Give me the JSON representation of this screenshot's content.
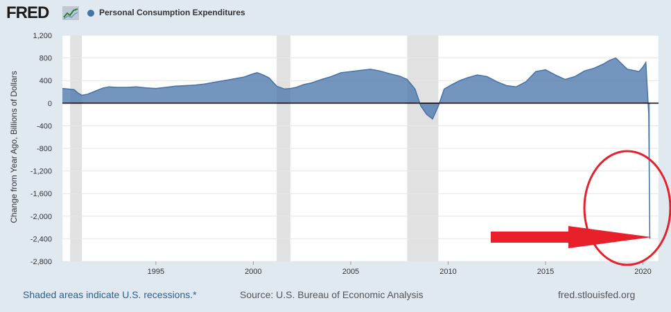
{
  "header": {
    "logo_text": "FRED",
    "logo_icon": "chart-line-icon",
    "legend_label": "Personal Consumption Expenditures"
  },
  "colors": {
    "series": "#4572a7",
    "recession": "#e1e1e1",
    "annotation": "#e8202a",
    "background": "#e1e9f0"
  },
  "footer": {
    "recessions_note": "Shaded areas indicate U.S. recessions.*",
    "source": "Source: U.S. Bureau of Economic Analysis",
    "site": "fred.stlouisfed.org"
  },
  "chart_data": {
    "type": "area",
    "title": "",
    "xlabel": "",
    "ylabel": "Change from Year Ago, Billions of Dollars",
    "ylim": [
      -2800,
      1200
    ],
    "xlim": [
      1990.2,
      2020.8
    ],
    "yticks": [
      1200,
      800,
      400,
      0,
      -400,
      -800,
      -1200,
      -1600,
      -2000,
      -2400,
      -2800
    ],
    "ytick_labels": [
      "1,200",
      "800",
      "400",
      "0",
      "-400",
      "-800",
      "-1,200",
      "-1,600",
      "-2,000",
      "-2,400",
      "-2,800"
    ],
    "xticks": [
      1995,
      2000,
      2005,
      2010,
      2015,
      2020
    ],
    "xtick_labels": [
      "1995",
      "2000",
      "2005",
      "2010",
      "2015",
      "2020"
    ],
    "grid": "horizontal",
    "legend": "top-left",
    "recessions": [
      [
        1990.6,
        1991.2
      ],
      [
        2001.2,
        2001.9
      ],
      [
        2007.9,
        2009.5
      ]
    ],
    "series": [
      {
        "name": "Personal Consumption Expenditures",
        "x": [
          1990.2,
          1990.5,
          1990.8,
          1991.0,
          1991.2,
          1991.5,
          1991.8,
          1992.0,
          1992.3,
          1992.6,
          1993.0,
          1993.5,
          1994.0,
          1994.5,
          1995.0,
          1995.5,
          1996.0,
          1996.5,
          1997.0,
          1997.5,
          1998.0,
          1998.5,
          1999.0,
          1999.5,
          2000.0,
          2000.2,
          2000.5,
          2000.8,
          2001.2,
          2001.6,
          2001.9,
          2002.2,
          2002.6,
          2003.0,
          2003.5,
          2004.0,
          2004.5,
          2005.0,
          2005.5,
          2006.0,
          2006.5,
          2007.0,
          2007.5,
          2007.9,
          2008.3,
          2008.6,
          2008.9,
          2009.2,
          2009.5,
          2009.8,
          2010.2,
          2010.6,
          2011.0,
          2011.5,
          2012.0,
          2012.5,
          2013.0,
          2013.5,
          2014.0,
          2014.5,
          2015.0,
          2015.5,
          2016.0,
          2016.5,
          2017.0,
          2017.5,
          2018.0,
          2018.3,
          2018.6,
          2018.9,
          2019.2,
          2019.5,
          2019.8,
          2020.0,
          2020.15,
          2020.3,
          2020.35
        ],
        "values": [
          260,
          250,
          240,
          180,
          140,
          160,
          200,
          230,
          270,
          290,
          280,
          280,
          290,
          270,
          260,
          280,
          300,
          310,
          320,
          340,
          370,
          400,
          430,
          460,
          520,
          540,
          500,
          450,
          300,
          250,
          260,
          280,
          330,
          360,
          420,
          470,
          540,
          560,
          580,
          600,
          570,
          520,
          480,
          420,
          250,
          -50,
          -200,
          -280,
          -50,
          250,
          330,
          400,
          450,
          500,
          470,
          380,
          310,
          290,
          380,
          560,
          590,
          500,
          420,
          470,
          570,
          620,
          700,
          760,
          800,
          700,
          600,
          580,
          560,
          640,
          720,
          -200,
          -2400
        ]
      }
    ]
  }
}
